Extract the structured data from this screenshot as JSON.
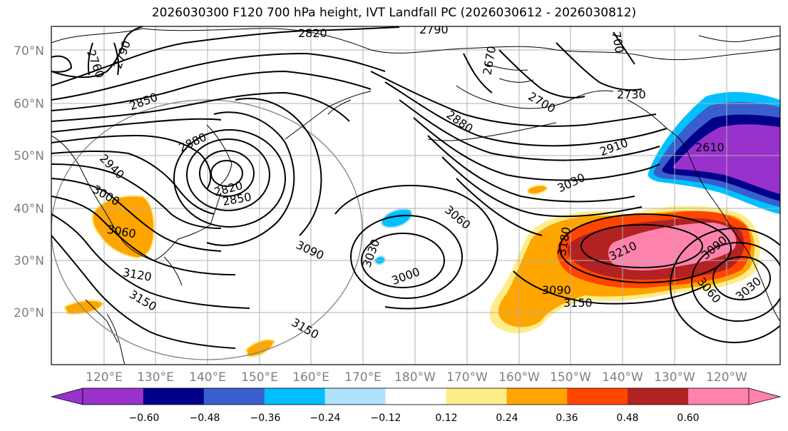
{
  "title": "2026030300 F120 700 hPa height, IVT Landfall PC (2026030612 - 2026030812)",
  "lat_labels": [
    "70°N",
    "60°N",
    "50°N",
    "40°N",
    "30°N",
    "20°N"
  ],
  "lon_labels": [
    "120°E",
    "130°E",
    "140°E",
    "150°E",
    "160°E",
    "170°E",
    "180°W",
    "170°W",
    "160°W",
    "150°W",
    "140°W",
    "130°W",
    "120°W"
  ],
  "colorbar": {
    "colors": [
      "#9932cc",
      "#00008b",
      "#3a5fcd",
      "#00bfff",
      "#b0e2ff",
      "#ffffff",
      "#ffec8b",
      "#ffa500",
      "#ff4500",
      "#b22222",
      "#ff82ab"
    ],
    "tick_labels": [
      "−0.60",
      "−0.48",
      "−0.36",
      "−0.24",
      "−0.12",
      "0.12",
      "0.24",
      "0.36",
      "0.48",
      "0.60"
    ]
  },
  "contour_labels": [
    "2820",
    "2790",
    "2760",
    "2790",
    "2850",
    "2880",
    "2940",
    "3000",
    "3060",
    "2820",
    "2850",
    "700",
    "2730",
    "2700",
    "2880",
    "2910",
    "3030",
    "3060",
    "3030",
    "3000",
    "3090",
    "3120",
    "3150",
    "3150",
    "3180",
    "3210",
    "3150",
    "3090",
    "3060",
    "3030",
    "2670",
    "2610",
    "3090"
  ]
}
